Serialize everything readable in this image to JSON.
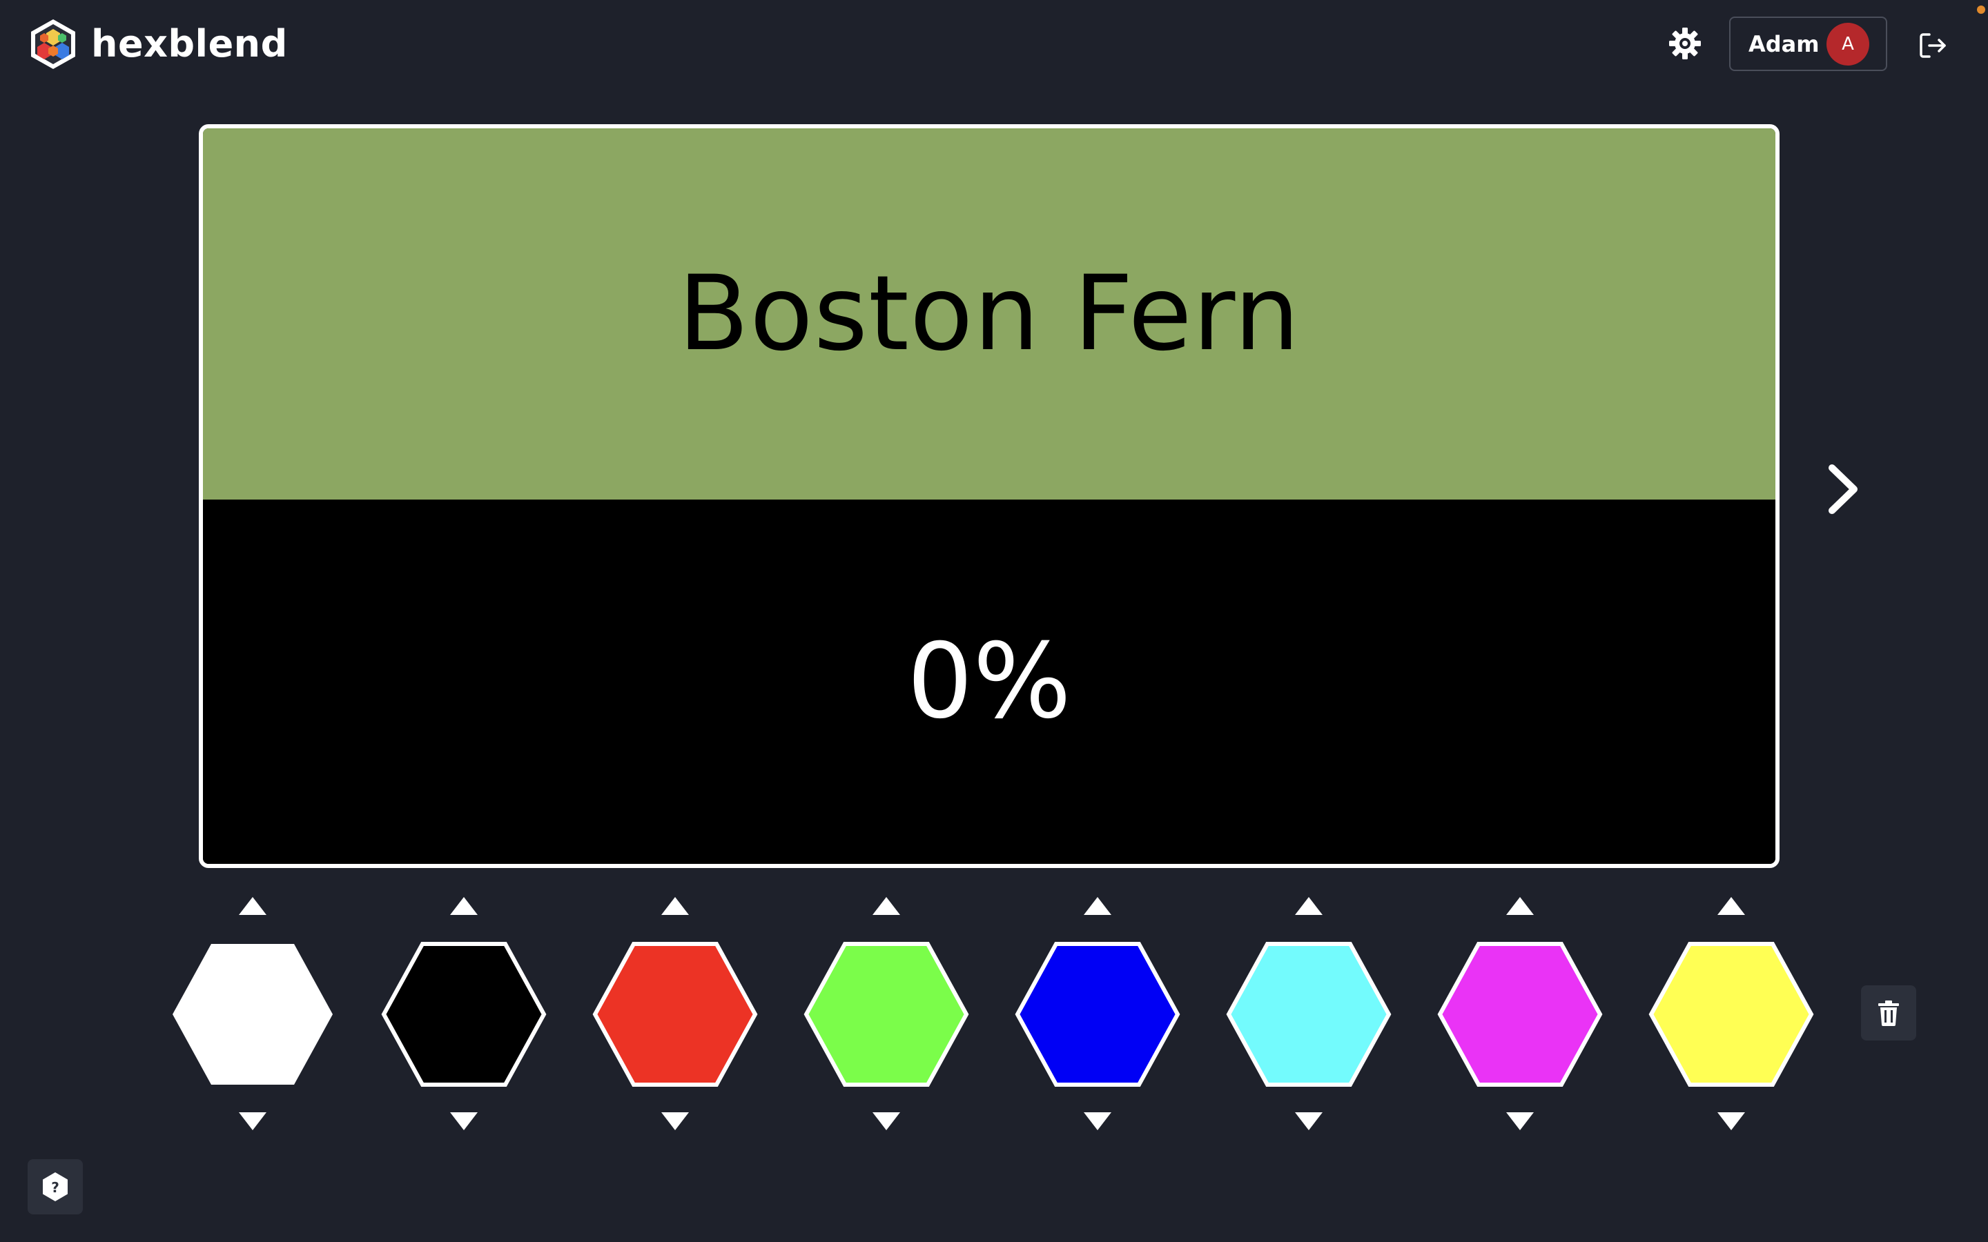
{
  "header": {
    "app_name": "hexblend",
    "user_name": "Adam",
    "user_initial": "A",
    "avatar_color": "#b5282b",
    "icons": {
      "logo": "hexblend-logo-icon",
      "settings": "gear-icon",
      "logout": "logout-icon"
    }
  },
  "target": {
    "name": "Boston Fern",
    "color": "#8ca762",
    "match_percent": "0%",
    "blend_color": "#000000"
  },
  "swatches": [
    {
      "name": "white",
      "color": "#ffffff"
    },
    {
      "name": "black",
      "color": "#000000"
    },
    {
      "name": "red",
      "color": "#ec3325"
    },
    {
      "name": "green",
      "color": "#7bfd4a"
    },
    {
      "name": "blue",
      "color": "#0000f5"
    },
    {
      "name": "cyan",
      "color": "#73fbfd"
    },
    {
      "name": "magenta",
      "color": "#ea33f6"
    },
    {
      "name": "yellow",
      "color": "#ffff54"
    }
  ],
  "controls": {
    "next_icon": "chevron-right-icon",
    "increase_icon": "caret-up-icon",
    "decrease_icon": "caret-down-icon",
    "trash_icon": "trash-icon",
    "help_icon": "help-hexagon-icon"
  },
  "theme": {
    "background": "#1e212b",
    "panel": "#2c303b",
    "accent": "#e28a2b"
  }
}
